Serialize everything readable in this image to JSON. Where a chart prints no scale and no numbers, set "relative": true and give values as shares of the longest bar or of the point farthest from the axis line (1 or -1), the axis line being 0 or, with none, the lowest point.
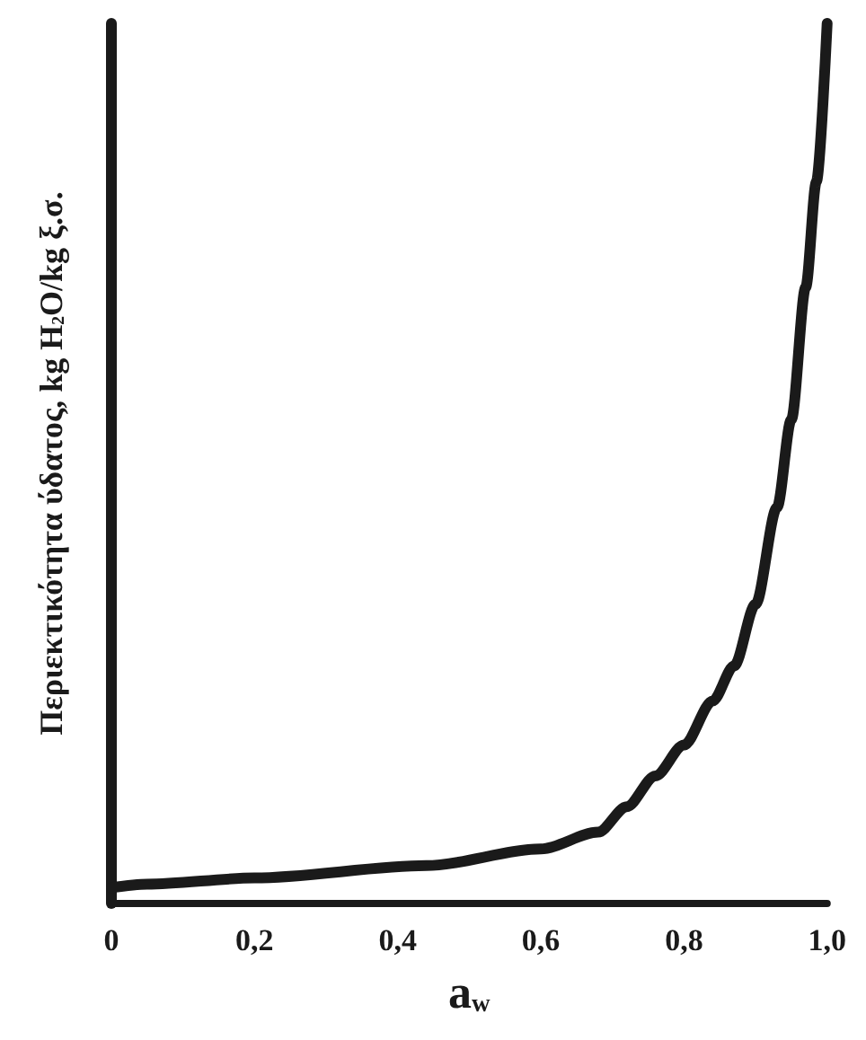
{
  "chart_data": {
    "type": "line",
    "relative": true,
    "xlabel": "a$_{w}$",
    "ylabel": "Περιεκτικότητα ύδατος, kg H$_{2}$O/kg ξ.σ.",
    "xlim": [
      0,
      1
    ],
    "xticks": [
      0,
      {
        "value": 0.2,
        "label": "0,2"
      },
      {
        "value": 0.4,
        "label": "0,4"
      },
      {
        "value": 0.6,
        "label": "0,6"
      },
      {
        "value": 0.8,
        "label": "0,8"
      },
      {
        "value": 1,
        "label": "1,0"
      }
    ],
    "x": [
      0,
      0.05,
      0.2,
      0.44,
      0.6,
      0.68,
      0.72,
      0.76,
      0.8,
      0.84,
      0.87,
      0.9,
      0.93,
      0.95,
      0.97,
      0.985,
      1.0
    ],
    "series": [
      {
        "color": "#1a1a1a",
        "values": [
          0.018,
          0.022,
          0.029,
          0.043,
          0.062,
          0.081,
          0.11,
          0.145,
          0.18,
          0.23,
          0.27,
          0.34,
          0.45,
          0.55,
          0.7,
          0.82,
          1.0
        ]
      }
    ],
    "grid": false,
    "marker": "none",
    "line_style": "solid"
  }
}
